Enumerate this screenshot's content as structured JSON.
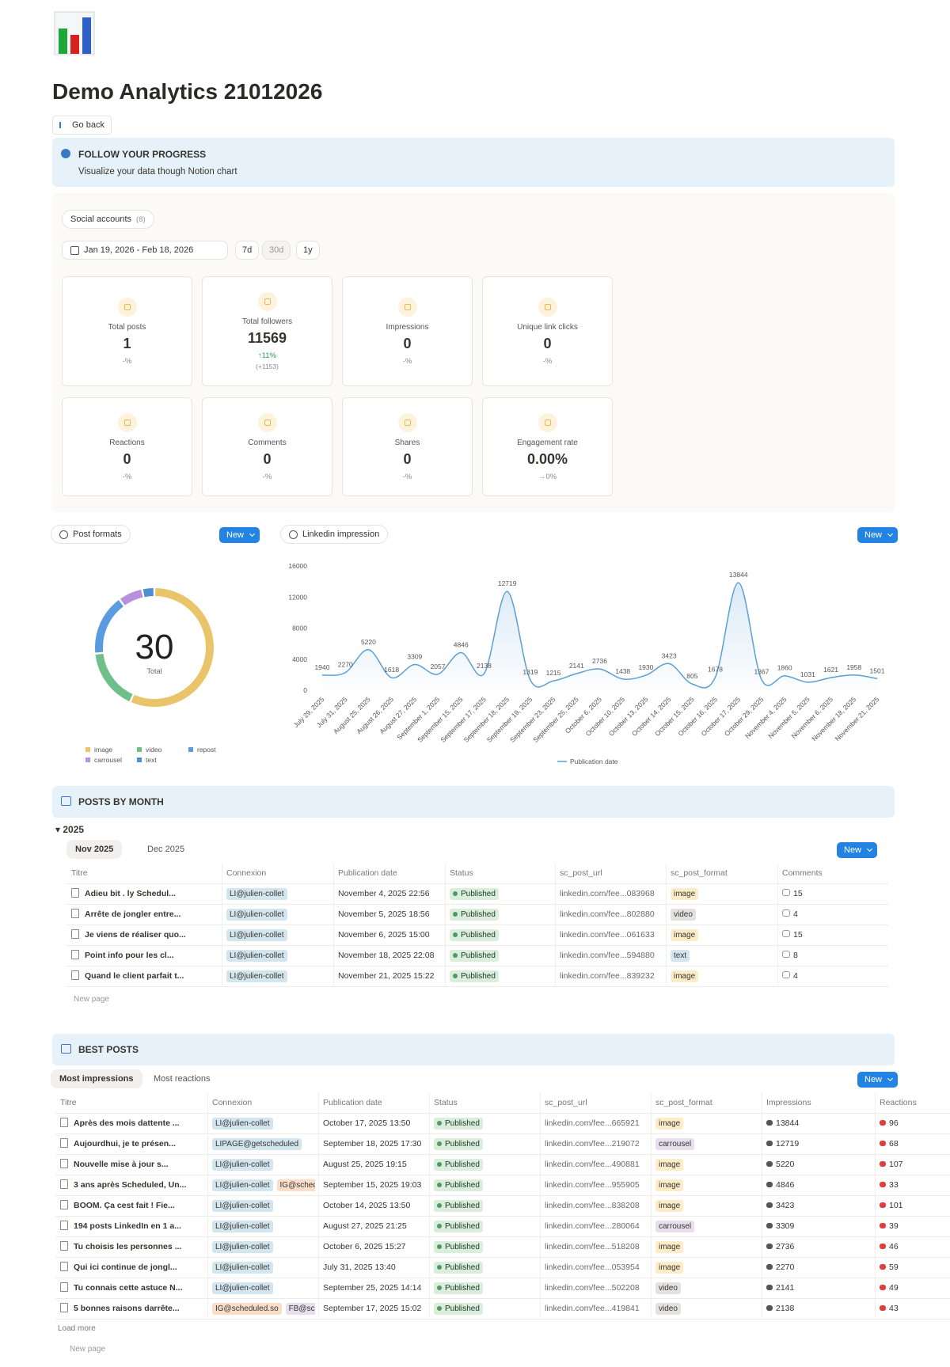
{
  "header": {
    "title": "Demo Analytics 21012026",
    "go_back": "Go back"
  },
  "callout": {
    "title": "FOLLOW YOUR PROGRESS",
    "text": "Visualize your data though Notion chart"
  },
  "filters": {
    "social_accounts": "Social accounts",
    "count": "(8)",
    "date_range": "Jan 19, 2026 - Feb 18, 2026",
    "periods": [
      "7d",
      "30d",
      "1y"
    ]
  },
  "stats": [
    {
      "label": "Total posts",
      "value": 1,
      "change": "-%"
    },
    {
      "label": "Total followers",
      "value": 11569,
      "change": "↑11%",
      "sub": "(+1153)"
    },
    {
      "label": "Impressions",
      "value": 0,
      "change": "-%"
    },
    {
      "label": "Unique link clicks",
      "value": 0,
      "change": "-%"
    },
    {
      "label": "Reactions",
      "value": 0,
      "change": "-%"
    },
    {
      "label": "Comments",
      "value": 0,
      "change": "-%"
    },
    {
      "label": "Shares",
      "value": 0,
      "change": "-%"
    },
    {
      "label": "Engagement rate",
      "value": "0.00%",
      "change": "→0%"
    }
  ],
  "ui": {
    "new_button": "New",
    "new_page": "New page",
    "load_more": "Load more"
  },
  "chart_data": [
    {
      "type": "pie",
      "title": "Post formats",
      "center_value": 30,
      "center_label": "Total",
      "categories": [
        "image",
        "video",
        "repost",
        "carrousel",
        "text"
      ],
      "values": [
        17,
        5,
        5,
        2,
        1
      ],
      "colors": [
        "#e9c46a",
        "#6fbf8b",
        "#5b9be0",
        "#b890dc",
        "#4f8fd6"
      ]
    },
    {
      "type": "line",
      "title": "Linkedin impression",
      "xlabel": "Publication date",
      "color": "#5a9fd6",
      "grid": false,
      "categories": [
        "July 29, 2025",
        "July 31, 2025",
        "August 25, 2025",
        "August 26, 2025",
        "August 27, 2025",
        "September 1, 2025",
        "September 15, 2025",
        "September 17, 2025",
        "September 18, 2025",
        "September 19, 2025",
        "September 23, 2025",
        "September 25, 2025",
        "October 6, 2025",
        "October 10, 2025",
        "October 13, 2025",
        "October 14, 2025",
        "October 15, 2025",
        "October 16, 2025",
        "October 17, 2025",
        "October 29, 2025",
        "November 4, 2025",
        "November 5, 2025",
        "November 6, 2025",
        "November 18, 2025",
        "November 21, 2025"
      ],
      "values": [
        1940,
        2270,
        5220,
        1618,
        3309,
        2057,
        4846,
        2138,
        12719,
        1319,
        1215,
        2141,
        2736,
        1438,
        1930,
        3423,
        805,
        1678,
        13844,
        1367,
        1860,
        1031,
        1621,
        1958,
        1501
      ],
      "ylim": [
        0,
        16000
      ],
      "yticks": [
        0,
        4000,
        8000,
        12000,
        16000
      ]
    }
  ],
  "posts_by_month": {
    "title": "POSTS BY MONTH",
    "group": "2025",
    "tabs": [
      "Nov 2025",
      "Dec 2025"
    ],
    "columns": [
      "Titre",
      "Connexion",
      "Publication date",
      "Status",
      "sc_post_url",
      "sc_post_format",
      "Comments"
    ],
    "rows": [
      {
        "title": "Adieu bit . ly  Schedul...",
        "connexion": [
          "LI@julien-collet"
        ],
        "date": "November 4, 2025 22:56",
        "status": "Published",
        "url": "linkedin.com/fee...083968",
        "format": "image",
        "comments": 15
      },
      {
        "title": "Arrête de jongler entre...",
        "connexion": [
          "LI@julien-collet"
        ],
        "date": "November 5, 2025 18:56",
        "status": "Published",
        "url": "linkedin.com/fee...802880",
        "format": "video",
        "comments": 4
      },
      {
        "title": "Je viens de réaliser quo...",
        "connexion": [
          "LI@julien-collet"
        ],
        "date": "November 6, 2025 15:00",
        "status": "Published",
        "url": "linkedin.com/fee...061633",
        "format": "image",
        "comments": 15
      },
      {
        "title": "Point info pour les cl...",
        "connexion": [
          "LI@julien-collet"
        ],
        "date": "November 18, 2025 22:08",
        "status": "Published",
        "url": "linkedin.com/fee...594880",
        "format": "text",
        "comments": 8
      },
      {
        "title": "Quand le client parfait t...",
        "connexion": [
          "LI@julien-collet"
        ],
        "date": "November 21, 2025 15:22",
        "status": "Published",
        "url": "linkedin.com/fee...839232",
        "format": "image",
        "comments": 4
      }
    ]
  },
  "best_posts": {
    "title": "BEST POSTS",
    "tabs": [
      "Most impressions",
      "Most reactions"
    ],
    "columns": [
      "Titre",
      "Connexion",
      "Publication date",
      "Status",
      "sc_post_url",
      "sc_post_format",
      "Impressions",
      "Reactions"
    ],
    "rows": [
      {
        "title": "Après des mois dattente ...",
        "connexion": [
          "LI@julien-collet"
        ],
        "date": "October 17, 2025 13:50",
        "status": "Published",
        "url": "linkedin.com/fee...665921",
        "format": "image",
        "impressions": 13844,
        "reactions": 96
      },
      {
        "title": "Aujourdhui, je te présen...",
        "connexion": [
          "LIPAGE@getscheduled"
        ],
        "date": "September 18, 2025 17:30",
        "status": "Published",
        "url": "linkedin.com/fee...219072",
        "format": "carrousel",
        "impressions": 12719,
        "reactions": 68
      },
      {
        "title": "Nouvelle mise à jour s...",
        "connexion": [
          "LI@julien-collet"
        ],
        "date": "August 25, 2025 19:15",
        "status": "Published",
        "url": "linkedin.com/fee...490881",
        "format": "image",
        "impressions": 5220,
        "reactions": 107
      },
      {
        "title": "3 ans après Scheduled, Un...",
        "connexion": [
          "LI@julien-collet",
          "IG@sched"
        ],
        "date": "September 15, 2025 19:03",
        "status": "Published",
        "url": "linkedin.com/fee...955905",
        "format": "image",
        "impressions": 4846,
        "reactions": 33
      },
      {
        "title": "BOOM. Ça cest fait ! Fie...",
        "connexion": [
          "LI@julien-collet"
        ],
        "date": "October 14, 2025 13:50",
        "status": "Published",
        "url": "linkedin.com/fee...838208",
        "format": "image",
        "impressions": 3423,
        "reactions": 101
      },
      {
        "title": "194 posts LinkedIn en 1 a...",
        "connexion": [
          "LI@julien-collet"
        ],
        "date": "August 27, 2025 21:25",
        "status": "Published",
        "url": "linkedin.com/fee...280064",
        "format": "carrousel",
        "impressions": 3309,
        "reactions": 39
      },
      {
        "title": "Tu choisis les personnes ...",
        "connexion": [
          "LI@julien-collet"
        ],
        "date": "October 6, 2025 15:27",
        "status": "Published",
        "url": "linkedin.com/fee...518208",
        "format": "image",
        "impressions": 2736,
        "reactions": 46
      },
      {
        "title": "Qui ici continue de jongl...",
        "connexion": [
          "LI@julien-collet"
        ],
        "date": "July 31, 2025 13:40",
        "status": "Published",
        "url": "linkedin.com/fee...053954",
        "format": "image",
        "impressions": 2270,
        "reactions": 59
      },
      {
        "title": "Tu connais cette astuce N...",
        "connexion": [
          "LI@julien-collet"
        ],
        "date": "September 25, 2025 14:14",
        "status": "Published",
        "url": "linkedin.com/fee...502208",
        "format": "video",
        "impressions": 2141,
        "reactions": 49
      },
      {
        "title": "5 bonnes raisons darrête...",
        "connexion": [
          "IG@scheduled.so",
          "FB@sch"
        ],
        "date": "September 17, 2025 15:02",
        "status": "Published",
        "url": "linkedin.com/fee...419841",
        "format": "video",
        "impressions": 2138,
        "reactions": 43
      }
    ]
  }
}
